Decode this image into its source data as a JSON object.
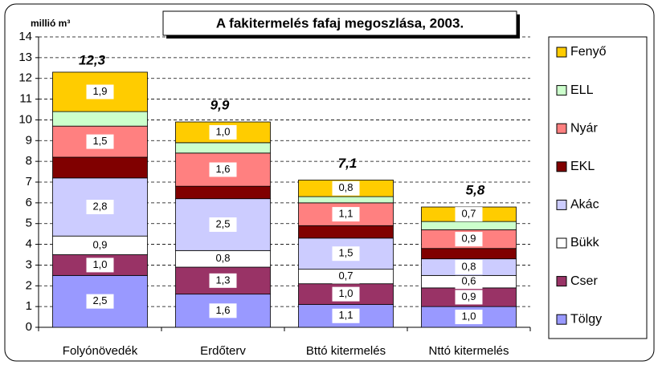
{
  "chart_data": {
    "type": "stacked-bar",
    "title": "A fakitermelés fafaj megoszlása, 2003.",
    "y_label": "millió m³",
    "categories": [
      "Folyónövedék",
      "Erdőterv",
      "Bttó kitermelés",
      "Nttó kitermelés"
    ],
    "series": [
      {
        "name": "Tölgy",
        "color": "#9999ff",
        "values": [
          2.5,
          1.6,
          1.1,
          1.0
        ],
        "value_labels": [
          "2,5",
          "1,6",
          "1,1",
          "1,0"
        ]
      },
      {
        "name": "Cser",
        "color": "#993366",
        "values": [
          1.0,
          1.3,
          1.0,
          0.9
        ],
        "value_labels": [
          "1,0",
          "1,3",
          "1,0",
          "0,9"
        ]
      },
      {
        "name": "Bükk",
        "color": "#ffffff",
        "values": [
          0.9,
          0.8,
          0.7,
          0.6
        ],
        "value_labels": [
          "0,9",
          "0,8",
          "0,7",
          "0,6"
        ]
      },
      {
        "name": "Akác",
        "color": "#ccccff",
        "values": [
          2.8,
          2.5,
          1.5,
          0.8
        ],
        "value_labels": [
          "2,8",
          "2,5",
          "1,5",
          "0,8"
        ]
      },
      {
        "name": "EKL",
        "color": "#800000",
        "values": [
          1.0,
          0.6,
          0.6,
          0.5
        ],
        "value_labels": [
          null,
          null,
          null,
          null
        ]
      },
      {
        "name": "Nyár",
        "color": "#ff8080",
        "values": [
          1.5,
          1.6,
          1.1,
          0.9
        ],
        "value_labels": [
          "1,5",
          "1,6",
          "1,1",
          "0,9"
        ]
      },
      {
        "name": "ELL",
        "color": "#ccffcc",
        "values": [
          0.7,
          0.5,
          0.3,
          0.4
        ],
        "value_labels": [
          null,
          null,
          null,
          null
        ]
      },
      {
        "name": "Fenyő",
        "color": "#ffcc00",
        "values": [
          1.9,
          1.0,
          0.8,
          0.7
        ],
        "value_labels": [
          "1,9",
          "1,0",
          "0,8",
          "0,7"
        ]
      }
    ],
    "totals": [
      12.3,
      9.9,
      7.1,
      5.8
    ],
    "total_labels": [
      "12,3",
      "9,9",
      "7,1",
      "5,8"
    ],
    "ylim": [
      0,
      14
    ],
    "yticks": [
      0,
      1,
      2,
      3,
      4,
      5,
      6,
      7,
      8,
      9,
      10,
      11,
      12,
      13,
      14
    ],
    "grid": true,
    "legend": "right"
  }
}
